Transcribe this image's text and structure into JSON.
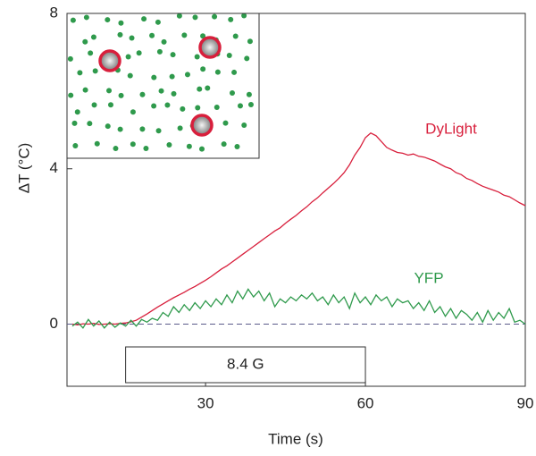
{
  "chart_data": {
    "type": "line",
    "x_label": "Time (s)",
    "y_label": "ΔT (°C)",
    "x": [
      5,
      6,
      7,
      8,
      9,
      10,
      11,
      12,
      13,
      14,
      15,
      16,
      17,
      18,
      19,
      20,
      21,
      22,
      23,
      24,
      25,
      26,
      27,
      28,
      29,
      30,
      31,
      32,
      33,
      34,
      35,
      36,
      37,
      38,
      39,
      40,
      41,
      42,
      43,
      44,
      45,
      46,
      47,
      48,
      49,
      50,
      51,
      52,
      53,
      54,
      55,
      56,
      57,
      58,
      59,
      60,
      61,
      62,
      63,
      64,
      65,
      66,
      67,
      68,
      69,
      70,
      71,
      72,
      73,
      74,
      75,
      76,
      77,
      78,
      79,
      80,
      81,
      82,
      83,
      84,
      85,
      86,
      87,
      88,
      89,
      90
    ],
    "series": [
      {
        "name": "DyLight",
        "color": "#d81f3c",
        "values": [
          0,
          -0.02,
          0.01,
          0,
          0.02,
          -0.01,
          0,
          0.01,
          0,
          0.02,
          0.03,
          0.06,
          0.1,
          0.18,
          0.26,
          0.35,
          0.44,
          0.52,
          0.6,
          0.68,
          0.75,
          0.82,
          0.9,
          0.97,
          1.05,
          1.13,
          1.22,
          1.32,
          1.42,
          1.5,
          1.6,
          1.7,
          1.8,
          1.9,
          2.0,
          2.1,
          2.2,
          2.3,
          2.4,
          2.48,
          2.6,
          2.7,
          2.8,
          2.92,
          3.02,
          3.15,
          3.25,
          3.38,
          3.5,
          3.62,
          3.75,
          3.9,
          4.1,
          4.35,
          4.55,
          4.8,
          4.92,
          4.85,
          4.7,
          4.55,
          4.48,
          4.42,
          4.4,
          4.35,
          4.38,
          4.32,
          4.3,
          4.25,
          4.2,
          4.12,
          4.05,
          4.0,
          3.9,
          3.85,
          3.75,
          3.7,
          3.62,
          3.55,
          3.5,
          3.45,
          3.4,
          3.32,
          3.28,
          3.2,
          3.12,
          3.05
        ]
      },
      {
        "name": "YFP",
        "color": "#2f9a4c",
        "values": [
          -0.05,
          0.05,
          -0.1,
          0.12,
          -0.05,
          0.08,
          -0.1,
          0.05,
          -0.08,
          0.03,
          -0.05,
          0.1,
          -0.05,
          0.12,
          0.05,
          0.15,
          0.1,
          0.3,
          0.2,
          0.45,
          0.3,
          0.5,
          0.35,
          0.55,
          0.4,
          0.6,
          0.45,
          0.65,
          0.5,
          0.75,
          0.55,
          0.85,
          0.65,
          0.9,
          0.7,
          0.85,
          0.6,
          0.8,
          0.45,
          0.65,
          0.55,
          0.7,
          0.6,
          0.75,
          0.65,
          0.8,
          0.6,
          0.7,
          0.5,
          0.75,
          0.55,
          0.7,
          0.4,
          0.8,
          0.55,
          0.7,
          0.5,
          0.75,
          0.6,
          0.7,
          0.45,
          0.65,
          0.55,
          0.6,
          0.4,
          0.55,
          0.35,
          0.6,
          0.3,
          0.45,
          0.2,
          0.4,
          0.15,
          0.35,
          0.25,
          0.1,
          0.3,
          0.05,
          0.35,
          0.1,
          0.3,
          0.15,
          0.4,
          0.05,
          0.1,
          0.0
        ]
      }
    ],
    "stimulus": {
      "label": "8.4 G",
      "start": 15,
      "end": 60
    },
    "baseline": 0,
    "xlim": [
      4,
      90
    ],
    "ylim": [
      -1.6,
      8
    ],
    "xticks": [
      30,
      60,
      90
    ],
    "yticks": [
      0,
      4,
      8
    ]
  }
}
